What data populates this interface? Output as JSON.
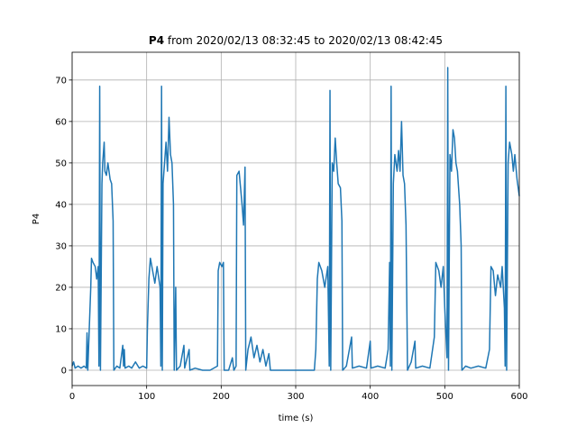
{
  "chart_data": {
    "type": "line",
    "title": {
      "variable": "P4",
      "range": "from 2020/02/13 08:32:45 to 2020/02/13 08:42:45"
    },
    "xlabel": "time (s)",
    "ylabel": "P4",
    "xlim": [
      0,
      600
    ],
    "ylim": [
      -3.7,
      76.7
    ],
    "xticks": [
      0,
      100,
      200,
      300,
      400,
      500,
      600
    ],
    "yticks": [
      0,
      10,
      20,
      30,
      40,
      50,
      60,
      70
    ],
    "grid": true,
    "series": [
      {
        "name": "P4",
        "color": "#1f77b4",
        "x": [
          0,
          2,
          4,
          8,
          12,
          16,
          19,
          20,
          21,
          23,
          25,
          26,
          28,
          31,
          33,
          35,
          36,
          37,
          38,
          40,
          41,
          43,
          44,
          46,
          48,
          51,
          53,
          55,
          56,
          60,
          64,
          68,
          69,
          70,
          71,
          76,
          80,
          85,
          90,
          95,
          100,
          101,
          103,
          105,
          108,
          111,
          114,
          118,
          119,
          120,
          121,
          122,
          124,
          126,
          128,
          130,
          132,
          134,
          136,
          137,
          139,
          140,
          145,
          150,
          151,
          157,
          158,
          165,
          175,
          185,
          195,
          196,
          198,
          201,
          203,
          204,
          210,
          215,
          217,
          220,
          221,
          224,
          226,
          228,
          230,
          232,
          233,
          236,
          240,
          244,
          248,
          252,
          256,
          260,
          264,
          266,
          325,
          327,
          329,
          331,
          335,
          339,
          343,
          345,
          346,
          347,
          349,
          351,
          353,
          355,
          357,
          360,
          362,
          363,
          368,
          375,
          376,
          385,
          395,
          400,
          401,
          410,
          420,
          424,
          426,
          427,
          428,
          429,
          431,
          433,
          436,
          438,
          440,
          442,
          444,
          446,
          448,
          450,
          455,
          460,
          461,
          470,
          480,
          486,
          488,
          492,
          495,
          498,
          500,
          503,
          504,
          505,
          507,
          509,
          511,
          513,
          515,
          517,
          520,
          522,
          523,
          528,
          535,
          545,
          555,
          560,
          562,
          565,
          568,
          571,
          575,
          577,
          580,
          581,
          582,
          583,
          585,
          587,
          590,
          592,
          594,
          597,
          600
        ],
        "values": [
          1,
          2,
          0.5,
          1,
          0.5,
          1,
          0.5,
          9,
          0,
          10,
          20,
          27,
          26,
          25,
          22,
          25,
          1,
          68.5,
          0,
          45,
          50,
          55,
          48,
          47,
          50,
          46,
          45,
          36,
          0,
          1,
          0.5,
          6,
          1,
          5,
          0.5,
          1,
          0.5,
          2,
          0.5,
          1,
          0.5,
          10,
          22,
          27,
          24,
          21,
          25,
          20,
          1,
          68.5,
          0,
          45,
          50,
          55,
          48,
          61,
          52,
          50,
          40,
          0,
          20,
          0,
          1,
          6,
          0.5,
          5,
          0,
          0.5,
          0,
          0,
          1,
          24,
          26,
          25,
          26,
          0,
          0,
          3,
          0,
          1,
          47,
          48,
          44,
          40,
          35,
          49,
          0,
          5,
          8,
          3,
          6,
          2,
          5,
          1,
          4,
          0,
          0,
          5,
          22,
          26,
          24,
          20,
          25,
          1,
          67.5,
          0,
          50,
          48,
          56,
          50,
          45,
          44,
          36,
          0,
          1,
          8,
          0.5,
          1,
          0.5,
          7,
          0.5,
          1,
          0.5,
          5,
          26,
          1,
          68.5,
          0,
          45,
          52,
          48,
          53,
          48,
          60,
          47,
          45,
          35,
          0,
          2,
          7,
          0.5,
          1,
          0.5,
          8,
          26,
          24,
          20,
          25,
          15,
          3,
          73,
          0,
          52,
          48,
          58,
          56,
          50,
          48,
          40,
          30,
          0,
          1,
          0.5,
          1,
          0.5,
          5,
          25,
          24,
          18,
          23,
          20,
          25,
          15,
          1,
          68.5,
          0,
          50,
          55,
          52,
          48,
          52,
          46,
          42
        ]
      }
    ]
  }
}
